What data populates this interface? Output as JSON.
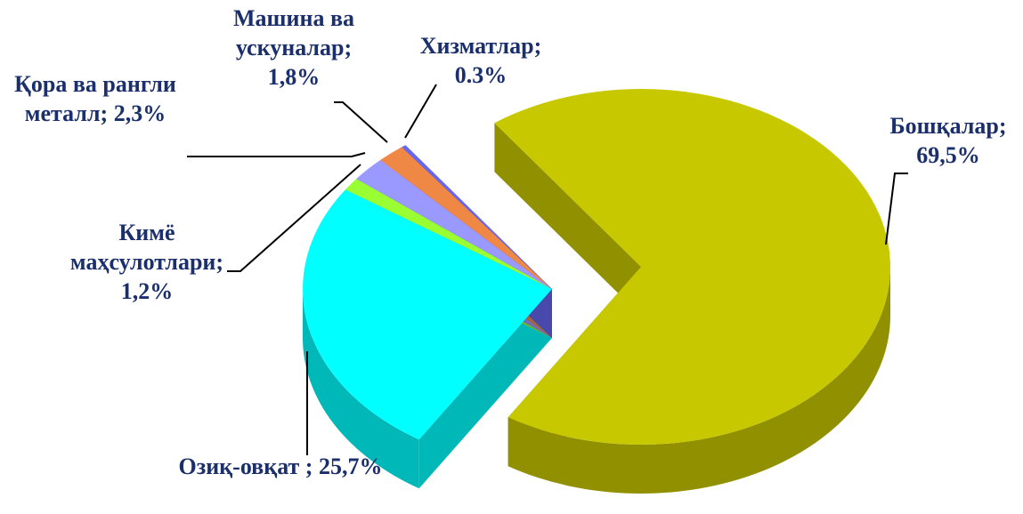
{
  "chart_data": {
    "type": "pie",
    "categories": [
      "Бошқалар;",
      "Озиқ-овқат ;",
      "Кимё маҳсулотлари;",
      "Қора ва рангли металл;",
      "Машина ва ускуналар;",
      "Хизматлар;"
    ],
    "values": [
      69.5,
      25.7,
      1.2,
      2.3,
      1.8,
      0.3
    ],
    "value_labels": [
      "69,5%",
      "25,7%",
      "1,2%",
      "2,3%",
      "1,8%",
      "0.3%"
    ],
    "colors": [
      "#c8c800",
      "#00ffff",
      "#99ff33",
      "#9999ff",
      "#ee8844",
      "#6666ee"
    ]
  }
}
